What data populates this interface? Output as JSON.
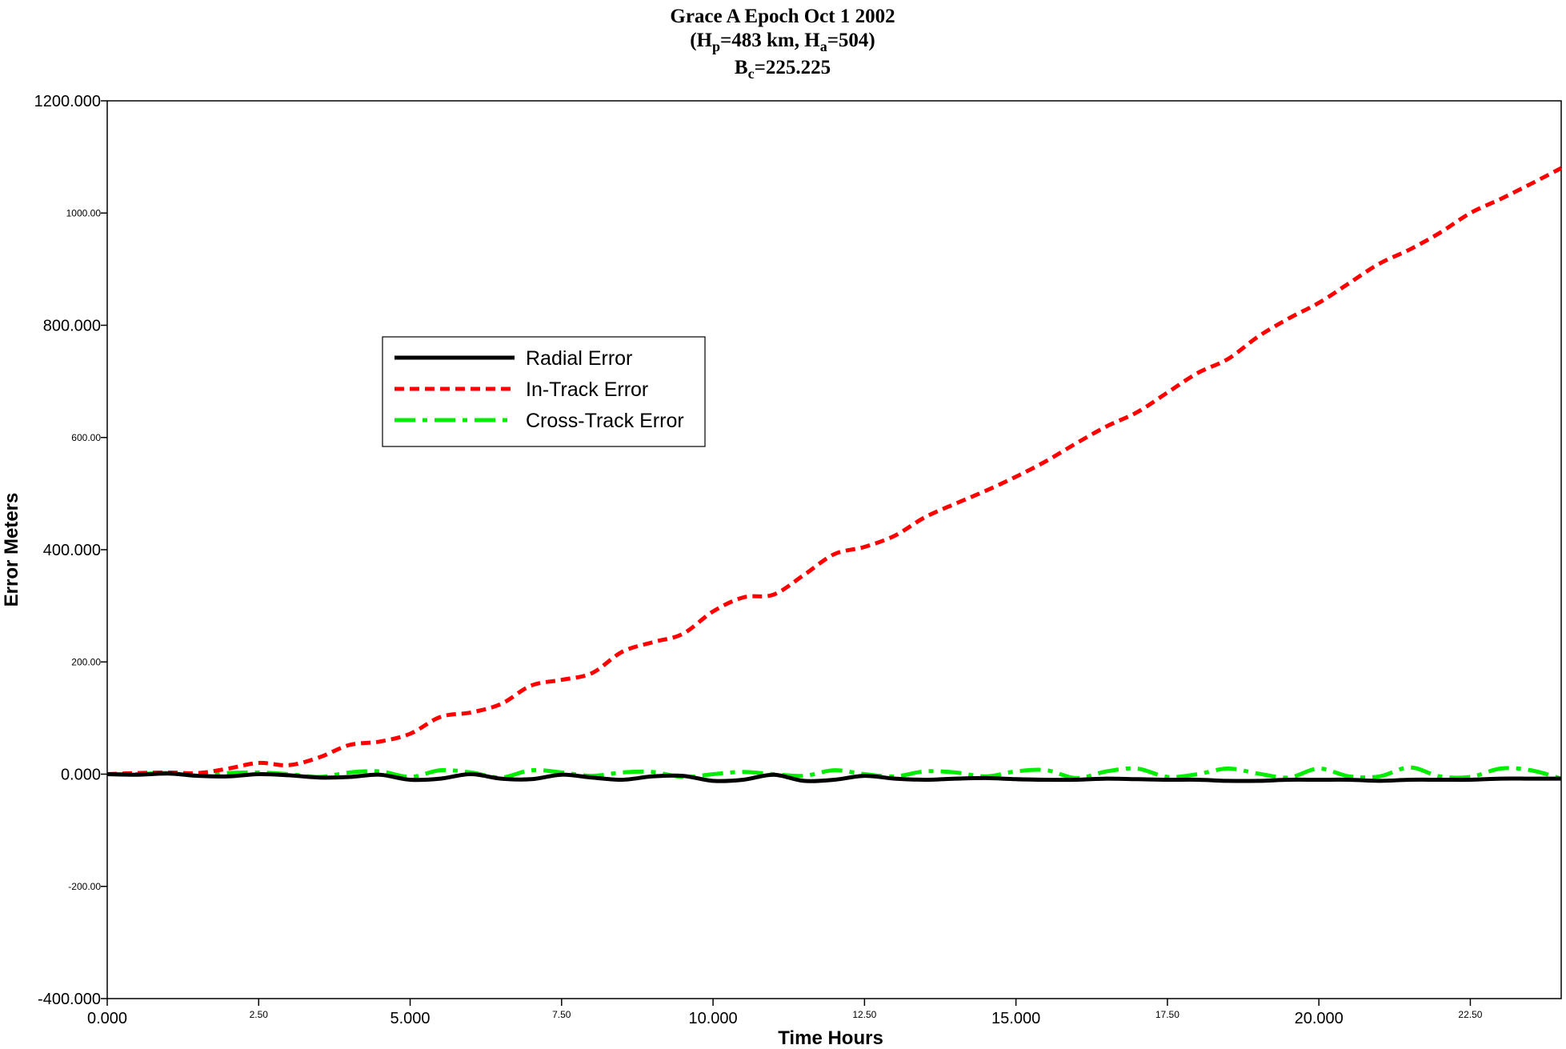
{
  "chart_data": {
    "type": "line",
    "title_lines": [
      "Grace A  Epoch Oct 1 2002",
      "(Hp=483 km, Ha=504)",
      "Bc=225.225"
    ],
    "title_parts": {
      "line1": "Grace A  Epoch Oct 1 2002",
      "line2_open": "(H",
      "line2_sub1": "p",
      "line2_mid": "=483 km, H",
      "line2_sub2": "a",
      "line2_close": "=504)",
      "line3_start": "B",
      "line3_sub": "c",
      "line3_end": "=225.225"
    },
    "xlabel": "Time Hours",
    "ylabel": "Error Meters",
    "xlim": [
      0,
      24
    ],
    "ylim": [
      -400,
      1200
    ],
    "x_ticks": [
      {
        "value": 0,
        "label": "0.000",
        "major": true
      },
      {
        "value": 2.5,
        "label": "2.50",
        "major": false
      },
      {
        "value": 5,
        "label": "5.000",
        "major": true
      },
      {
        "value": 7.5,
        "label": "7.50",
        "major": false
      },
      {
        "value": 10,
        "label": "10.000",
        "major": true
      },
      {
        "value": 12.5,
        "label": "12.50",
        "major": false
      },
      {
        "value": 15,
        "label": "15.000",
        "major": true
      },
      {
        "value": 17.5,
        "label": "17.50",
        "major": false
      },
      {
        "value": 20,
        "label": "20.000",
        "major": true
      },
      {
        "value": 22.5,
        "label": "22.50",
        "major": false
      }
    ],
    "y_ticks": [
      {
        "value": 1200,
        "label": "1200.000",
        "major": true
      },
      {
        "value": 1000,
        "label": "1000.00",
        "major": false
      },
      {
        "value": 800,
        "label": "800.000",
        "major": true
      },
      {
        "value": 600,
        "label": "600.00",
        "major": false
      },
      {
        "value": 400,
        "label": "400.000",
        "major": true
      },
      {
        "value": 200,
        "label": "200.00",
        "major": false
      },
      {
        "value": 0,
        "label": "0.000",
        "major": true
      },
      {
        "value": -200,
        "label": "-200.00",
        "major": false
      },
      {
        "value": -400,
        "label": "-400.000",
        "major": true
      }
    ],
    "grid": false,
    "legend_position": "upper-left-center",
    "series": [
      {
        "name": "Radial Error",
        "color": "#000000",
        "dash": "solid",
        "x": [
          0,
          0.5,
          1,
          1.5,
          2,
          2.5,
          3,
          3.5,
          4,
          4.5,
          5,
          5.5,
          6,
          6.5,
          7,
          7.5,
          8,
          8.5,
          9,
          9.5,
          10,
          10.5,
          11,
          11.5,
          12,
          12.5,
          13,
          13.5,
          14,
          14.5,
          15,
          15.5,
          16,
          16.5,
          17,
          17.5,
          18,
          18.5,
          19,
          19.5,
          20,
          20.5,
          21,
          21.5,
          22,
          22.5,
          23,
          23.5,
          24
        ],
        "y": [
          0,
          -1,
          1,
          -3,
          -4,
          0,
          -2,
          -6,
          -5,
          -1,
          -10,
          -8,
          0,
          -8,
          -9,
          -1,
          -6,
          -10,
          -4,
          -3,
          -12,
          -10,
          -1,
          -12,
          -10,
          -3,
          -8,
          -10,
          -8,
          -7,
          -9,
          -10,
          -10,
          -8,
          -9,
          -10,
          -10,
          -12,
          -12,
          -10,
          -10,
          -10,
          -12,
          -10,
          -10,
          -10,
          -8,
          -8,
          -8
        ]
      },
      {
        "name": "In-Track Error",
        "color": "#ff0000",
        "dash": "dashed",
        "x": [
          0,
          0.5,
          1,
          1.5,
          2,
          2.5,
          3,
          3.5,
          4,
          4.5,
          5,
          5.5,
          6,
          6.5,
          7,
          7.5,
          8,
          8.5,
          9,
          9.5,
          10,
          10.5,
          11,
          11.5,
          12,
          12.5,
          13,
          13.5,
          14,
          14.5,
          15,
          15.5,
          16,
          16.5,
          17,
          17.5,
          18,
          18.5,
          19,
          19.5,
          20,
          20.5,
          21,
          21.5,
          22,
          22.5,
          23,
          23.5,
          24
        ],
        "y": [
          0,
          2,
          3,
          2,
          10,
          20,
          16,
          30,
          52,
          58,
          72,
          102,
          110,
          125,
          158,
          168,
          180,
          218,
          235,
          250,
          290,
          315,
          320,
          355,
          392,
          405,
          425,
          458,
          482,
          505,
          530,
          558,
          590,
          620,
          645,
          680,
          715,
          740,
          780,
          812,
          840,
          875,
          910,
          935,
          965,
          1000,
          1025,
          1052,
          1080
        ]
      },
      {
        "name": "Cross-Track Error",
        "color": "#00ee00",
        "dash": "dashdot",
        "x": [
          0,
          0.5,
          1,
          1.5,
          2,
          2.5,
          3,
          3.5,
          4,
          4.5,
          5,
          5.5,
          6,
          6.5,
          7,
          7.5,
          8,
          8.5,
          9,
          9.5,
          10,
          10.5,
          11,
          11.5,
          12,
          12.5,
          13,
          13.5,
          14,
          14.5,
          15,
          15.5,
          16,
          16.5,
          17,
          17.5,
          18,
          18.5,
          19,
          19.5,
          20,
          20.5,
          21,
          21.5,
          22,
          22.5,
          23,
          23.5,
          24
        ],
        "y": [
          0,
          0,
          2,
          -3,
          2,
          3,
          0,
          -5,
          3,
          5,
          -5,
          7,
          3,
          -6,
          7,
          3,
          -3,
          3,
          4,
          -5,
          0,
          4,
          0,
          -3,
          7,
          0,
          -4,
          5,
          3,
          -4,
          5,
          7,
          -7,
          5,
          10,
          -5,
          0,
          10,
          1,
          -6,
          10,
          -4,
          -4,
          12,
          -4,
          -5,
          10,
          7,
          -8
        ]
      }
    ]
  },
  "legend": {
    "items": [
      "Radial Error",
      "In-Track Error",
      "Cross-Track Error"
    ]
  }
}
